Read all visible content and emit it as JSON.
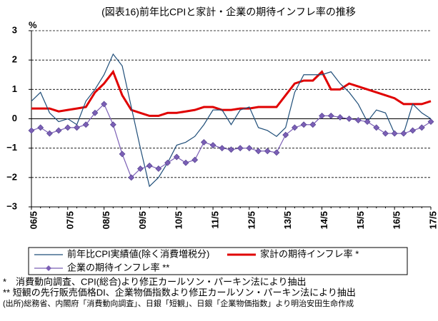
{
  "chart_data": {
    "type": "line",
    "title": "(図表16)前年比CPIと家計・企業の期待インフレ率の推移",
    "ylabel": "%",
    "categories": [
      "06/5",
      null,
      null,
      null,
      "07/5",
      null,
      null,
      null,
      "08/5",
      null,
      null,
      null,
      "09/5",
      null,
      null,
      null,
      "10/5",
      null,
      null,
      null,
      "11/5",
      null,
      null,
      null,
      "12/5",
      null,
      null,
      null,
      "13/5",
      null,
      null,
      null,
      "14/5",
      null,
      null,
      null,
      "15/5",
      null,
      null,
      null,
      "16/5",
      null,
      null,
      null,
      "17/5"
    ],
    "series": [
      {
        "name": "前年比CPI実績値(除く消費増税分)",
        "color": "#1f4e79",
        "width": 1.2,
        "marker": false,
        "values": [
          0.6,
          0.9,
          0.2,
          -0.1,
          0.0,
          -0.2,
          0.6,
          1.0,
          1.5,
          2.2,
          1.8,
          0.4,
          -1.0,
          -2.3,
          -2.0,
          -1.5,
          -0.9,
          -0.8,
          -0.6,
          -0.2,
          0.3,
          0.3,
          -0.2,
          0.3,
          0.4,
          -0.3,
          -0.4,
          -0.6,
          -0.3,
          0.9,
          1.5,
          1.5,
          1.5,
          1.6,
          1.2,
          0.9,
          0.5,
          -0.1,
          0.3,
          0.2,
          -0.5,
          -0.5,
          0.5,
          0.2,
          0.0
        ]
      },
      {
        "name": "家計の期待インフレ率 *",
        "color": "#e00000",
        "width": 3,
        "marker": false,
        "values": [
          0.35,
          0.35,
          0.35,
          0.25,
          0.3,
          0.35,
          0.4,
          0.9,
          1.2,
          1.6,
          0.8,
          0.3,
          0.2,
          0.1,
          0.1,
          0.2,
          0.2,
          0.25,
          0.3,
          0.4,
          0.4,
          0.3,
          0.3,
          0.35,
          0.35,
          0.4,
          0.4,
          0.4,
          0.8,
          1.2,
          1.3,
          1.3,
          1.6,
          1.0,
          1.0,
          1.2,
          1.1,
          1.0,
          0.9,
          0.8,
          0.7,
          0.5,
          0.5,
          0.5,
          0.6
        ]
      },
      {
        "name": "企業の期待インフレ率 **",
        "color": "#7b5fb5",
        "width": 1.2,
        "marker": true,
        "values": [
          -0.4,
          -0.3,
          -0.5,
          -0.4,
          -0.3,
          -0.3,
          -0.2,
          0.2,
          0.5,
          -0.2,
          -1.2,
          -2.0,
          -1.7,
          -1.6,
          -1.7,
          -1.5,
          -1.3,
          -1.5,
          -1.4,
          -0.8,
          -0.9,
          -1.0,
          -1.05,
          -1.0,
          -1.0,
          -1.1,
          -1.1,
          -1.15,
          -0.55,
          -0.3,
          -0.2,
          -0.2,
          0.1,
          0.1,
          0.05,
          0.0,
          -0.05,
          -0.1,
          -0.3,
          -0.5,
          -0.5,
          -0.5,
          -0.4,
          -0.3,
          -0.1
        ]
      }
    ],
    "ylim": [
      -3,
      3
    ],
    "yticks": [
      {
        "value": -3,
        "label": "−3"
      },
      {
        "value": -2,
        "label": "−2"
      },
      {
        "value": -1,
        "label": "−1"
      },
      0,
      1,
      2,
      3
    ],
    "grid": true,
    "notes": [
      "*　消費動向調査、CPI(総合)より修正カールソン・パーキン法により抽出",
      "**  短観の先行販売価格DI、企業物価指数より修正カールソン・パーキン法により抽出",
      "(出所)総務省、内閣府「消費動向調査」、日銀「短観」、日銀「企業物価指数」より明治安田生命作成"
    ]
  }
}
